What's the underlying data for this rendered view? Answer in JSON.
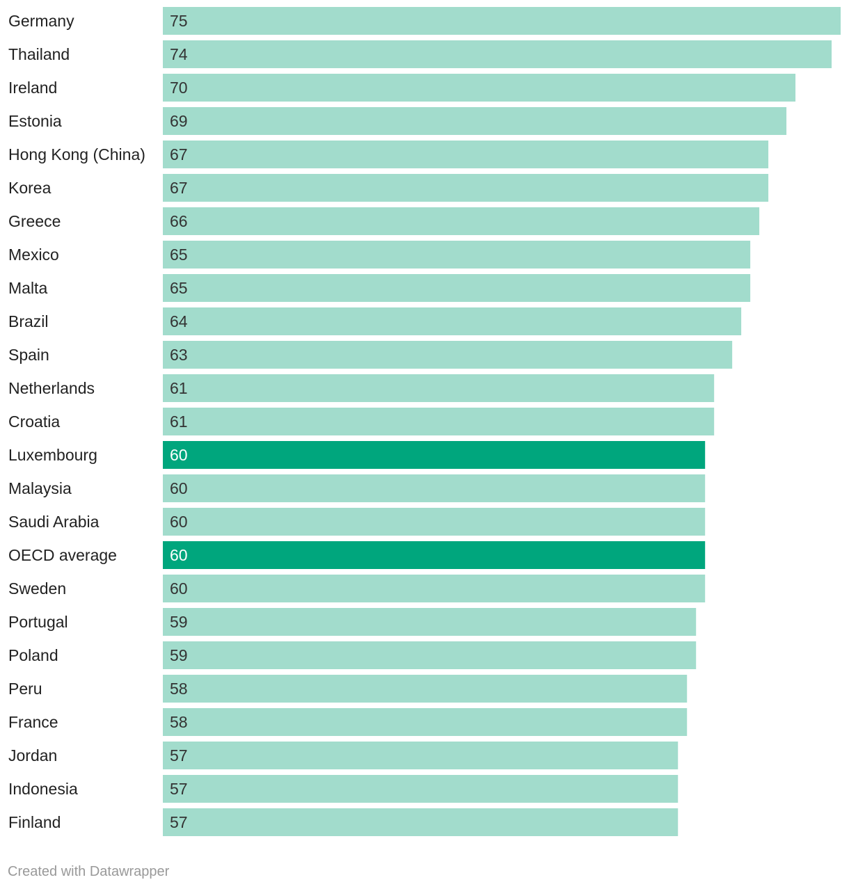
{
  "chart_data": {
    "type": "bar",
    "orientation": "horizontal",
    "title": "",
    "xlabel": "",
    "ylabel": "",
    "xlim": [
      0,
      75
    ],
    "categories": [
      "Germany",
      "Thailand",
      "Ireland",
      "Estonia",
      "Hong Kong (China)",
      "Korea",
      "Greece",
      "Mexico",
      "Malta",
      "Brazil",
      "Spain",
      "Netherlands",
      "Croatia",
      "Luxembourg",
      "Malaysia",
      "Saudi Arabia",
      "OECD average",
      "Sweden",
      "Portugal",
      "Poland",
      "Peru",
      "France",
      "Jordan",
      "Indonesia",
      "Finland"
    ],
    "values": [
      75,
      74,
      70,
      69,
      67,
      67,
      66,
      65,
      65,
      64,
      63,
      61,
      61,
      60,
      60,
      60,
      60,
      60,
      59,
      59,
      58,
      58,
      57,
      57,
      57
    ],
    "highlighted": [
      "Luxembourg",
      "OECD average"
    ],
    "colors": {
      "bar_default": "#a2dccc",
      "bar_highlight": "#00a67d",
      "label_on_default": "#333333",
      "label_on_highlight": "#ffffff",
      "category_text": "#222222"
    }
  },
  "footer": {
    "credit": "Created with Datawrapper"
  }
}
